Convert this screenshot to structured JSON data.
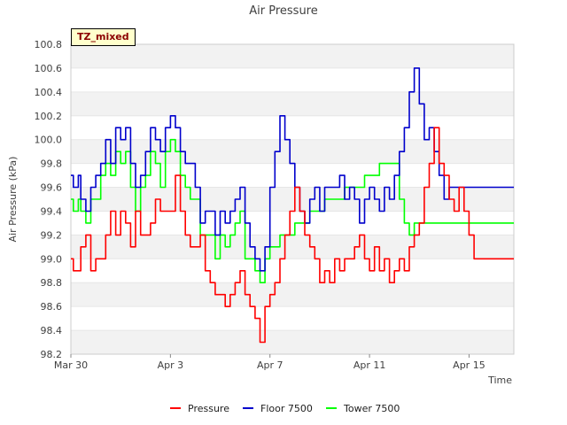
{
  "chart_data": {
    "type": "line",
    "title": "Air Pressure",
    "xlabel": "Time",
    "ylabel": "Air Pressure (kPa)",
    "annotation": "TZ_mixed",
    "xlim": [
      0,
      17.8
    ],
    "ylim": [
      98.2,
      100.8
    ],
    "x_ticks": [
      {
        "x": 0,
        "label": "Mar 30"
      },
      {
        "x": 4,
        "label": "Apr 3"
      },
      {
        "x": 8,
        "label": "Apr 7"
      },
      {
        "x": 12,
        "label": "Apr 11"
      },
      {
        "x": 16,
        "label": "Apr 15"
      }
    ],
    "y_ticks": [
      98.2,
      98.4,
      98.6,
      98.8,
      99.0,
      99.2,
      99.4,
      99.6,
      99.8,
      100.0,
      100.2,
      100.4,
      100.6,
      100.8
    ],
    "y_tick_labels": [
      "98.2",
      "98.4",
      "98.6",
      "98.8",
      "99.0",
      "99.2",
      "99.4",
      "99.6",
      "99.8",
      "100.0",
      "100.2",
      "100.4",
      "100.6",
      "100.8"
    ],
    "colors": {
      "Pressure": "#ff0000",
      "Floor 7500": "#0000cc",
      "Tower 7500": "#00ff00"
    },
    "series": [
      {
        "name": "Pressure",
        "x": [
          0.0,
          0.1,
          0.3,
          0.4,
          0.6,
          0.8,
          1.0,
          1.2,
          1.4,
          1.6,
          1.8,
          2.0,
          2.2,
          2.4,
          2.6,
          2.8,
          3.0,
          3.2,
          3.4,
          3.6,
          3.8,
          4.0,
          4.2,
          4.4,
          4.6,
          4.8,
          5.0,
          5.2,
          5.4,
          5.6,
          5.8,
          6.0,
          6.2,
          6.4,
          6.6,
          6.8,
          7.0,
          7.2,
          7.4,
          7.6,
          7.8,
          8.0,
          8.2,
          8.4,
          8.6,
          8.8,
          9.0,
          9.2,
          9.4,
          9.6,
          9.8,
          10.0,
          10.2,
          10.4,
          10.6,
          10.8,
          11.0,
          11.2,
          11.4,
          11.6,
          11.8,
          12.0,
          12.2,
          12.4,
          12.6,
          12.8,
          13.0,
          13.2,
          13.4,
          13.6,
          13.8,
          14.0,
          14.2,
          14.4,
          14.6,
          14.8,
          15.0,
          15.2,
          15.4,
          15.6,
          15.8,
          16.0,
          16.2,
          16.4,
          16.6,
          16.8,
          17.0,
          17.2,
          17.4,
          17.6,
          17.8
        ],
        "values": [
          99.0,
          98.9,
          98.9,
          99.1,
          99.2,
          98.9,
          99.0,
          99.0,
          99.2,
          99.4,
          99.2,
          99.4,
          99.3,
          99.1,
          99.4,
          99.2,
          99.2,
          99.3,
          99.5,
          99.4,
          99.4,
          99.4,
          99.7,
          99.4,
          99.2,
          99.1,
          99.1,
          99.2,
          98.9,
          98.8,
          98.7,
          98.7,
          98.6,
          98.7,
          98.8,
          98.9,
          98.7,
          98.6,
          98.5,
          98.3,
          98.6,
          98.7,
          98.8,
          99.0,
          99.2,
          99.4,
          99.6,
          99.4,
          99.2,
          99.1,
          99.0,
          98.8,
          98.9,
          98.8,
          99.0,
          98.9,
          99.0,
          99.0,
          99.1,
          99.2,
          99.0,
          98.9,
          99.1,
          98.9,
          99.0,
          98.8,
          98.9,
          99.0,
          98.9,
          99.1,
          99.2,
          99.3,
          99.6,
          99.8,
          100.1,
          99.8,
          99.7,
          99.5,
          99.4,
          99.6,
          99.4,
          99.2,
          99.0,
          99.0,
          99.0,
          99.0,
          99.0,
          99.0,
          99.0,
          99.0,
          99.0
        ]
      },
      {
        "name": "Floor 7500",
        "x": [
          0.0,
          0.1,
          0.3,
          0.4,
          0.6,
          0.8,
          1.0,
          1.2,
          1.4,
          1.6,
          1.8,
          2.0,
          2.2,
          2.4,
          2.6,
          2.8,
          3.0,
          3.2,
          3.4,
          3.6,
          3.8,
          4.0,
          4.2,
          4.4,
          4.6,
          4.8,
          5.0,
          5.2,
          5.4,
          5.6,
          5.8,
          6.0,
          6.2,
          6.4,
          6.6,
          6.8,
          7.0,
          7.2,
          7.4,
          7.6,
          7.8,
          8.0,
          8.2,
          8.4,
          8.6,
          8.8,
          9.0,
          9.2,
          9.4,
          9.6,
          9.8,
          10.0,
          10.2,
          10.4,
          10.6,
          10.8,
          11.0,
          11.2,
          11.4,
          11.6,
          11.8,
          12.0,
          12.2,
          12.4,
          12.6,
          12.8,
          13.0,
          13.2,
          13.4,
          13.6,
          13.8,
          14.0,
          14.2,
          14.4,
          14.6,
          14.8,
          15.0,
          15.2,
          15.4,
          15.6,
          15.8,
          16.0,
          16.2,
          16.4,
          16.6,
          16.8,
          17.0,
          17.2,
          17.4,
          17.6,
          17.8
        ],
        "values": [
          99.7,
          99.6,
          99.7,
          99.5,
          99.4,
          99.6,
          99.7,
          99.8,
          100.0,
          99.8,
          100.1,
          100.0,
          100.1,
          99.8,
          99.6,
          99.7,
          99.9,
          100.1,
          100.0,
          99.9,
          100.1,
          100.2,
          100.1,
          99.9,
          99.8,
          99.8,
          99.6,
          99.3,
          99.4,
          99.4,
          99.2,
          99.4,
          99.3,
          99.4,
          99.5,
          99.6,
          99.3,
          99.1,
          99.0,
          98.9,
          99.1,
          99.6,
          99.9,
          100.2,
          100.0,
          99.8,
          99.6,
          99.4,
          99.3,
          99.5,
          99.6,
          99.4,
          99.6,
          99.6,
          99.6,
          99.7,
          99.5,
          99.6,
          99.5,
          99.3,
          99.5,
          99.6,
          99.5,
          99.4,
          99.6,
          99.5,
          99.7,
          99.9,
          100.1,
          100.4,
          100.6,
          100.3,
          100.0,
          100.1,
          99.9,
          99.7,
          99.5,
          99.6,
          99.6,
          99.6,
          99.6,
          99.6,
          99.6,
          99.6,
          99.6,
          99.6,
          99.6,
          99.6,
          99.6,
          99.6,
          99.6
        ]
      },
      {
        "name": "Tower 7500",
        "x": [
          0.0,
          0.1,
          0.3,
          0.4,
          0.6,
          0.8,
          1.0,
          1.2,
          1.4,
          1.6,
          1.8,
          2.0,
          2.2,
          2.4,
          2.6,
          2.8,
          3.0,
          3.2,
          3.4,
          3.6,
          3.8,
          4.0,
          4.2,
          4.4,
          4.6,
          4.8,
          5.0,
          5.2,
          5.4,
          5.6,
          5.8,
          6.0,
          6.2,
          6.4,
          6.6,
          6.8,
          7.0,
          7.2,
          7.4,
          7.6,
          7.8,
          8.0,
          8.2,
          8.4,
          8.6,
          8.8,
          9.0,
          9.2,
          9.4,
          9.6,
          9.8,
          10.0,
          10.2,
          10.4,
          10.6,
          10.8,
          11.0,
          11.2,
          11.4,
          11.6,
          11.8,
          12.0,
          12.2,
          12.4,
          12.6,
          12.8,
          13.0,
          13.2,
          13.4,
          13.6,
          13.8,
          14.0,
          14.2,
          14.4,
          14.6,
          14.8,
          15.0,
          15.2,
          15.4,
          15.6,
          15.8,
          16.0,
          16.2,
          16.4,
          16.6,
          16.8,
          17.0,
          17.2,
          17.4,
          17.6,
          17.8
        ],
        "values": [
          99.5,
          99.4,
          99.5,
          99.4,
          99.3,
          99.5,
          99.5,
          99.7,
          99.8,
          99.7,
          99.9,
          99.8,
          99.9,
          99.6,
          99.4,
          99.6,
          99.7,
          99.9,
          99.8,
          99.6,
          99.9,
          100.0,
          99.9,
          99.7,
          99.6,
          99.5,
          99.5,
          99.2,
          99.2,
          99.2,
          99.0,
          99.2,
          99.1,
          99.2,
          99.3,
          99.4,
          99.0,
          99.0,
          98.9,
          98.8,
          99.0,
          99.1,
          99.1,
          99.2,
          99.2,
          99.2,
          99.3,
          99.3,
          99.3,
          99.4,
          99.4,
          99.4,
          99.5,
          99.5,
          99.5,
          99.5,
          99.6,
          99.6,
          99.6,
          99.6,
          99.7,
          99.7,
          99.7,
          99.8,
          99.8,
          99.8,
          99.8,
          99.5,
          99.3,
          99.2,
          99.3,
          99.3,
          99.3,
          99.3,
          99.3,
          99.3,
          99.3,
          99.3,
          99.3,
          99.3,
          99.3,
          99.3,
          99.3,
          99.3,
          99.3,
          99.3,
          99.3,
          99.3,
          99.3,
          99.3,
          99.3
        ]
      }
    ]
  }
}
